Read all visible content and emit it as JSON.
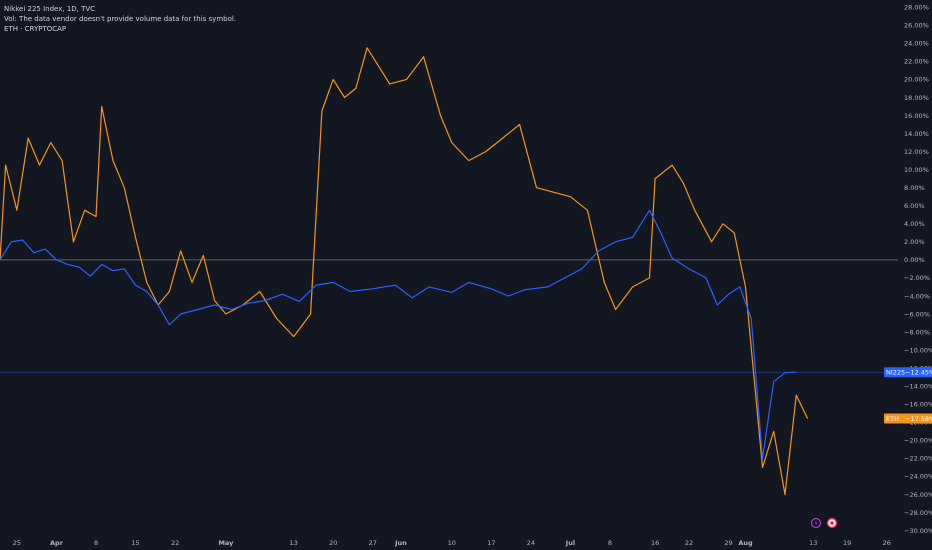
{
  "legend": {
    "symbol_line": "Nikkei 225 Index, 1D, TVC",
    "vol_line": "Vol: The data vendor doesn't provide volume data for this symbol.",
    "eth_line": "ETH · CRYPTOCAP"
  },
  "colors": {
    "background": "#131722",
    "nikkei": "#2962ff",
    "eth": "#f7931a",
    "axis_text": "#b2b5be",
    "zero_line": "#787b86"
  },
  "chart_data": {
    "type": "line",
    "title": "Nikkei 225 Index, 1D, TVC",
    "y_unit": "%",
    "ylim": [
      -30.6,
      28.8
    ],
    "y_ticks": [
      28,
      26,
      24,
      22,
      20,
      18,
      16,
      14,
      12,
      10,
      8,
      6,
      4,
      2,
      0,
      -2,
      -4,
      -6,
      -8,
      -10,
      -12,
      -14,
      -16,
      -18,
      -20,
      -22,
      -24,
      -26,
      -28,
      -30
    ],
    "y_tick_labels": [
      "28.00%",
      "26.00%",
      "24.00%",
      "22.00%",
      "20.00%",
      "18.00%",
      "16.00%",
      "14.00%",
      "12.00%",
      "10.00%",
      "8.00%",
      "6.00%",
      "4.00%",
      "2.00%",
      "0.00%",
      "−2.00%",
      "−4.00%",
      "−6.00%",
      "−8.00%",
      "−10.00%",
      "−12.00%",
      "−14.00%",
      "−16.00%",
      "−18.00%",
      "−20.00%",
      "−22.00%",
      "−24.00%",
      "−26.00%",
      "−28.00%",
      "−30.00%"
    ],
    "x_start": "2024-03-22",
    "x_end": "2024-08-28",
    "x_ticks": [
      {
        "date": "2024-03-25",
        "label": "25"
      },
      {
        "date": "2024-04-01",
        "label": "Apr"
      },
      {
        "date": "2024-04-08",
        "label": "8"
      },
      {
        "date": "2024-04-15",
        "label": "15"
      },
      {
        "date": "2024-04-22",
        "label": "22"
      },
      {
        "date": "2024-05-01",
        "label": "May"
      },
      {
        "date": "2024-05-13",
        "label": "13"
      },
      {
        "date": "2024-05-20",
        "label": "20"
      },
      {
        "date": "2024-05-27",
        "label": "27"
      },
      {
        "date": "2024-06-01",
        "label": "Jun"
      },
      {
        "date": "2024-06-10",
        "label": "10"
      },
      {
        "date": "2024-06-17",
        "label": "17"
      },
      {
        "date": "2024-06-24",
        "label": "24"
      },
      {
        "date": "2024-07-01",
        "label": "Jul"
      },
      {
        "date": "2024-07-08",
        "label": "8"
      },
      {
        "date": "2024-07-16",
        "label": "16"
      },
      {
        "date": "2024-07-22",
        "label": "22"
      },
      {
        "date": "2024-07-29",
        "label": "29"
      },
      {
        "date": "2024-08-01",
        "label": "Aug"
      },
      {
        "date": "2024-08-13",
        "label": "13"
      },
      {
        "date": "2024-08-19",
        "label": "19"
      },
      {
        "date": "2024-08-26",
        "label": "26"
      }
    ],
    "series": [
      {
        "name": "NI225",
        "last_label": "−12.45%",
        "points": [
          [
            "2024-03-22",
            0.0
          ],
          [
            "2024-03-24",
            2.0
          ],
          [
            "2024-03-26",
            2.2
          ],
          [
            "2024-03-28",
            0.8
          ],
          [
            "2024-03-30",
            1.2
          ],
          [
            "2024-04-01",
            0.0
          ],
          [
            "2024-04-03",
            -0.5
          ],
          [
            "2024-04-05",
            -0.8
          ],
          [
            "2024-04-07",
            -1.8
          ],
          [
            "2024-04-09",
            -0.5
          ],
          [
            "2024-04-11",
            -1.2
          ],
          [
            "2024-04-13",
            -1.0
          ],
          [
            "2024-04-15",
            -2.8
          ],
          [
            "2024-04-17",
            -3.5
          ],
          [
            "2024-04-19",
            -5.0
          ],
          [
            "2024-04-21",
            -7.2
          ],
          [
            "2024-04-23",
            -6.0
          ],
          [
            "2024-04-26",
            -5.5
          ],
          [
            "2024-04-29",
            -5.0
          ],
          [
            "2024-05-02",
            -5.5
          ],
          [
            "2024-05-05",
            -4.8
          ],
          [
            "2024-05-08",
            -4.5
          ],
          [
            "2024-05-11",
            -3.8
          ],
          [
            "2024-05-14",
            -4.6
          ],
          [
            "2024-05-17",
            -2.8
          ],
          [
            "2024-05-20",
            -2.5
          ],
          [
            "2024-05-23",
            -3.5
          ],
          [
            "2024-05-27",
            -3.2
          ],
          [
            "2024-05-31",
            -2.8
          ],
          [
            "2024-06-03",
            -4.2
          ],
          [
            "2024-06-06",
            -3.0
          ],
          [
            "2024-06-10",
            -3.6
          ],
          [
            "2024-06-13",
            -2.5
          ],
          [
            "2024-06-17",
            -3.2
          ],
          [
            "2024-06-20",
            -4.0
          ],
          [
            "2024-06-23",
            -3.3
          ],
          [
            "2024-06-27",
            -3.0
          ],
          [
            "2024-06-30",
            -2.0
          ],
          [
            "2024-07-03",
            -1.0
          ],
          [
            "2024-07-06",
            1.0
          ],
          [
            "2024-07-09",
            2.0
          ],
          [
            "2024-07-12",
            2.5
          ],
          [
            "2024-07-15",
            5.5
          ],
          [
            "2024-07-17",
            3.0
          ],
          [
            "2024-07-19",
            0.2
          ],
          [
            "2024-07-22",
            -1.0
          ],
          [
            "2024-07-25",
            -2.0
          ],
          [
            "2024-07-27",
            -5.0
          ],
          [
            "2024-07-29",
            -3.8
          ],
          [
            "2024-07-31",
            -3.0
          ],
          [
            "2024-08-02",
            -6.5
          ],
          [
            "2024-08-04",
            -22.0
          ],
          [
            "2024-08-06",
            -13.5
          ],
          [
            "2024-08-08",
            -12.5
          ],
          [
            "2024-08-10",
            -12.45
          ]
        ]
      },
      {
        "name": "ETH",
        "last_label": "−17.58%",
        "points": [
          [
            "2024-03-22",
            0.0
          ],
          [
            "2024-03-23",
            10.5
          ],
          [
            "2024-03-25",
            5.5
          ],
          [
            "2024-03-27",
            13.5
          ],
          [
            "2024-03-29",
            10.5
          ],
          [
            "2024-03-31",
            13.0
          ],
          [
            "2024-04-02",
            11.0
          ],
          [
            "2024-04-04",
            2.0
          ],
          [
            "2024-04-06",
            5.5
          ],
          [
            "2024-04-08",
            4.8
          ],
          [
            "2024-04-09",
            17.0
          ],
          [
            "2024-04-11",
            11.0
          ],
          [
            "2024-04-13",
            8.0
          ],
          [
            "2024-04-15",
            2.5
          ],
          [
            "2024-04-17",
            -2.5
          ],
          [
            "2024-04-19",
            -5.0
          ],
          [
            "2024-04-21",
            -3.5
          ],
          [
            "2024-04-23",
            1.0
          ],
          [
            "2024-04-25",
            -2.5
          ],
          [
            "2024-04-27",
            0.5
          ],
          [
            "2024-04-29",
            -4.5
          ],
          [
            "2024-05-01",
            -6.0
          ],
          [
            "2024-05-04",
            -5.0
          ],
          [
            "2024-05-07",
            -3.5
          ],
          [
            "2024-05-10",
            -6.5
          ],
          [
            "2024-05-13",
            -8.5
          ],
          [
            "2024-05-16",
            -6.0
          ],
          [
            "2024-05-18",
            16.5
          ],
          [
            "2024-05-20",
            20.0
          ],
          [
            "2024-05-22",
            18.0
          ],
          [
            "2024-05-24",
            19.0
          ],
          [
            "2024-05-26",
            23.5
          ],
          [
            "2024-05-28",
            21.5
          ],
          [
            "2024-05-30",
            19.5
          ],
          [
            "2024-06-02",
            20.0
          ],
          [
            "2024-06-05",
            22.5
          ],
          [
            "2024-06-08",
            16.0
          ],
          [
            "2024-06-10",
            13.0
          ],
          [
            "2024-06-13",
            11.0
          ],
          [
            "2024-06-16",
            12.0
          ],
          [
            "2024-06-19",
            13.5
          ],
          [
            "2024-06-22",
            15.0
          ],
          [
            "2024-06-25",
            8.0
          ],
          [
            "2024-06-28",
            7.5
          ],
          [
            "2024-07-01",
            7.0
          ],
          [
            "2024-07-04",
            5.5
          ],
          [
            "2024-07-07",
            -2.5
          ],
          [
            "2024-07-09",
            -5.5
          ],
          [
            "2024-07-12",
            -3.0
          ],
          [
            "2024-07-15",
            -2.0
          ],
          [
            "2024-07-16",
            9.0
          ],
          [
            "2024-07-19",
            10.5
          ],
          [
            "2024-07-21",
            8.5
          ],
          [
            "2024-07-23",
            5.5
          ],
          [
            "2024-07-26",
            2.0
          ],
          [
            "2024-07-28",
            4.0
          ],
          [
            "2024-07-30",
            3.0
          ],
          [
            "2024-08-01",
            -3.0
          ],
          [
            "2024-08-04",
            -23.0
          ],
          [
            "2024-08-06",
            -19.0
          ],
          [
            "2024-08-08",
            -26.0
          ],
          [
            "2024-08-10",
            -15.0
          ],
          [
            "2024-08-12",
            -17.58
          ]
        ]
      }
    ]
  }
}
